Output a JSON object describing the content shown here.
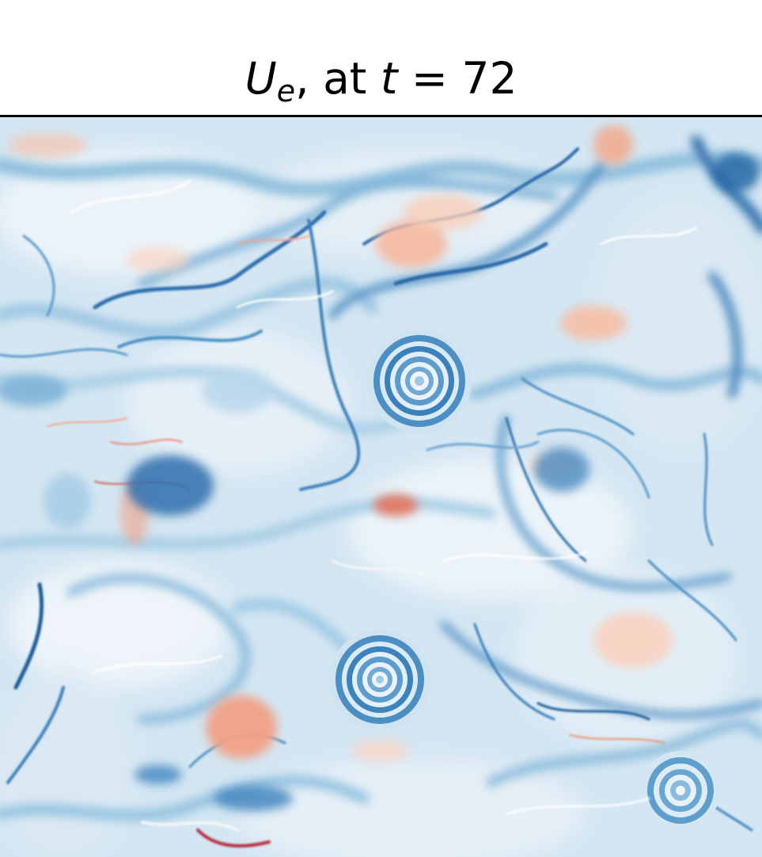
{
  "title": {
    "symbol": "U",
    "subscript": "e",
    "rest": ", at ",
    "time_symbol": "t",
    "equals": " = ",
    "time_value": "72"
  },
  "field": {
    "colormap": [
      "#2166ac",
      "#4393c3",
      "#92c5de",
      "#d1e5f0",
      "#f7f7f7",
      "#fddbc7",
      "#f4a582",
      "#d6604d",
      "#b2182b"
    ],
    "background_color": "#d6e7f3"
  }
}
